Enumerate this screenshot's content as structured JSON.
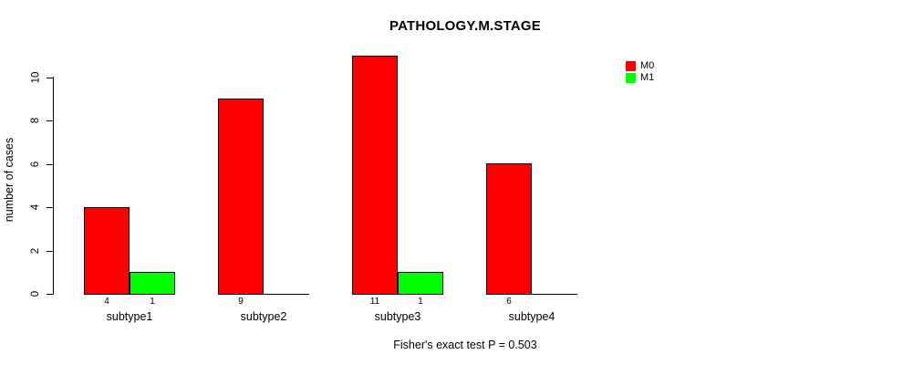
{
  "title": "PATHOLOGY.M.STAGE",
  "footer": "Fisher's exact test P = 0.503",
  "chart_data": {
    "type": "bar",
    "title": "PATHOLOGY.M.STAGE",
    "xlabel": "",
    "ylabel": "number of cases",
    "categories": [
      "subtype1",
      "subtype2",
      "subtype3",
      "subtype4"
    ],
    "series": [
      {
        "name": "M0",
        "color": "#FF0000",
        "values": [
          4,
          9,
          11,
          6
        ]
      },
      {
        "name": "M1",
        "color": "#00FF00",
        "values": [
          1,
          0,
          1,
          0
        ]
      }
    ],
    "bar_value_labels": [
      [
        "4",
        "1"
      ],
      [
        "9",
        ""
      ],
      [
        "11",
        "1"
      ],
      [
        "6",
        ""
      ]
    ],
    "ylim": [
      0,
      10
    ],
    "yticks": [
      0,
      2,
      4,
      6,
      8,
      10
    ],
    "grid": false,
    "legend_position": "right-inside",
    "bar_outline_color": "#000000",
    "annotation": "Fisher's exact test P = 0.503"
  }
}
